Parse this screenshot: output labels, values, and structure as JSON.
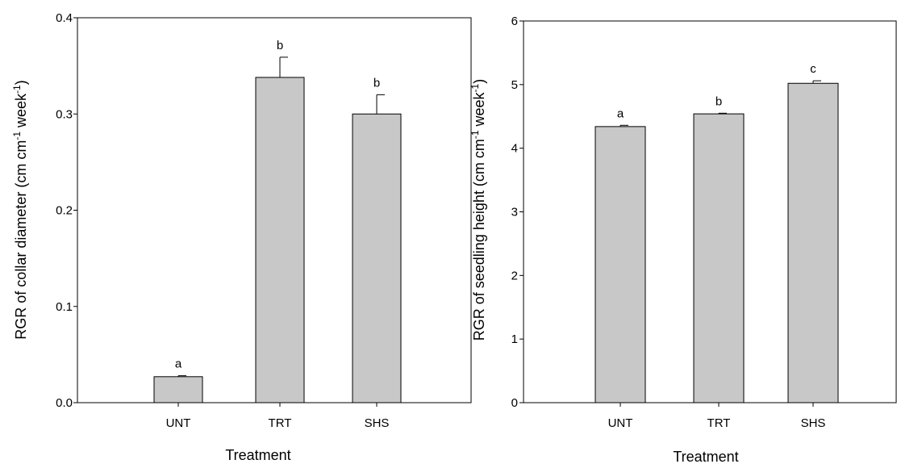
{
  "chart_data": [
    {
      "type": "bar",
      "categories": [
        "UNT",
        "TRT",
        "SHS"
      ],
      "values": [
        0.027,
        0.338,
        0.3
      ],
      "errors": [
        0.001,
        0.021,
        0.02
      ],
      "letters": [
        "a",
        "b",
        "b"
      ],
      "xlabel": "Treatment",
      "ylabel": "RGR of collar diameter (cm cm-1 week-1)",
      "ylabel_parts": {
        "before": "RGR of collar diameter (cm cm",
        "sup1": "-1",
        "middle": " week",
        "sup2": "-1",
        "after": ")"
      },
      "ylim": [
        0,
        0.4
      ],
      "yticks": [
        "0.0",
        "0.1",
        "0.2",
        "0.3",
        "0.4"
      ],
      "bar_color": "#c8c8c8",
      "grid": false
    },
    {
      "type": "bar",
      "categories": [
        "UNT",
        "TRT",
        "SHS"
      ],
      "values": [
        4.34,
        4.54,
        5.02
      ],
      "errors": [
        0.02,
        0.01,
        0.04
      ],
      "letters": [
        "a",
        "b",
        "c"
      ],
      "xlabel": "Treatment",
      "ylabel": "RGR of seedling height (cm cm-1 week-1)",
      "ylabel_parts": {
        "before": "RGR of seedling height (cm cm",
        "sup1": "-1",
        "middle": " week",
        "sup2": "-1",
        "after": ")"
      },
      "ylim": [
        0,
        6
      ],
      "yticks": [
        "0",
        "1",
        "2",
        "3",
        "4",
        "5",
        "6"
      ],
      "bar_color": "#c8c8c8",
      "grid": false
    }
  ]
}
